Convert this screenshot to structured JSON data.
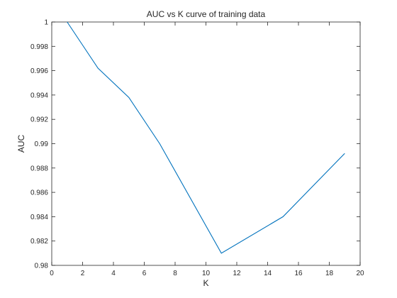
{
  "chart_data": {
    "type": "line",
    "title": "AUC vs K curve of training data",
    "xlabel": "K",
    "ylabel": "AUC",
    "xlim": [
      0,
      20
    ],
    "ylim": [
      0.98,
      1.0
    ],
    "grid": false,
    "x_ticks": [
      "0",
      "2",
      "4",
      "6",
      "8",
      "10",
      "12",
      "14",
      "16",
      "18",
      "20"
    ],
    "y_ticks": [
      "0.98",
      "0.982",
      "0.984",
      "0.986",
      "0.988",
      "0.99",
      "0.992",
      "0.994",
      "0.996",
      "0.998",
      "1"
    ],
    "line_color": "#0072BD",
    "series": [
      {
        "x": [
          1,
          3,
          5,
          7,
          11,
          15,
          19
        ],
        "values": [
          1.0,
          0.9962,
          0.9938,
          0.99,
          0.981,
          0.984,
          0.9892
        ]
      }
    ]
  }
}
